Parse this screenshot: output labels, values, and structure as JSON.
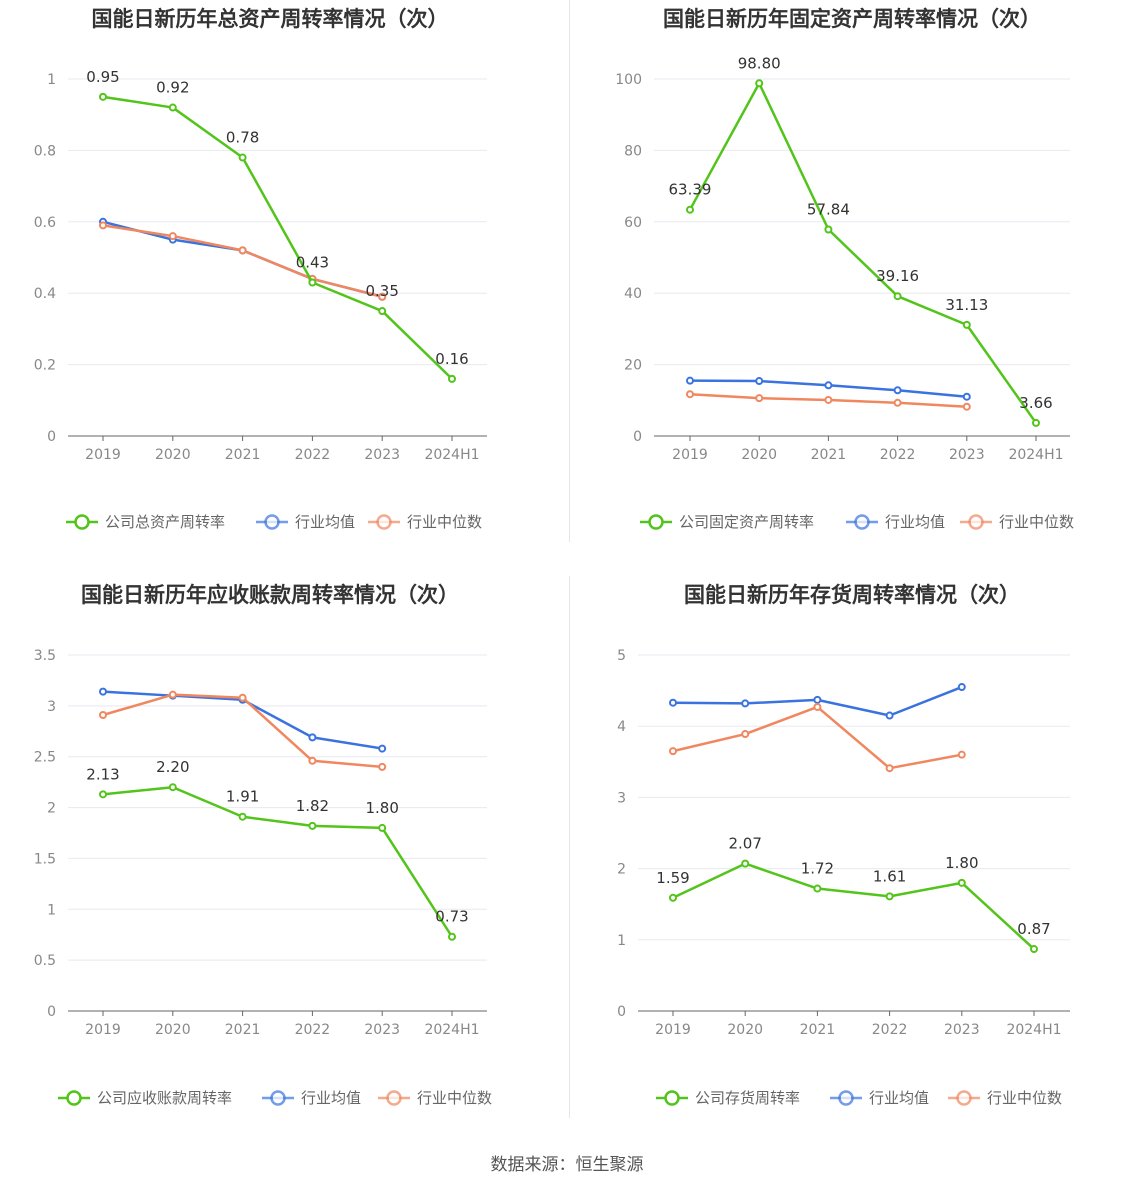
{
  "footer": "数据来源：恒生聚源",
  "colors": {
    "company": "#52c41a",
    "avg": "#3a73df",
    "median": "#f0875f",
    "grid": "#e8e8f0",
    "axis": "#888888"
  },
  "chart_data": [
    {
      "type": "line",
      "title": "国能日新历年总资产周转率情况（次）",
      "categories": [
        "2019",
        "2020",
        "2021",
        "2022",
        "2023",
        "2024H1"
      ],
      "yticks": [
        "0",
        "0.2",
        "0.4",
        "0.6",
        "0.8",
        "1"
      ],
      "ylim": [
        0,
        1
      ],
      "series": [
        {
          "name": "公司总资产周转率",
          "key": "company",
          "values": [
            0.95,
            0.92,
            0.78,
            0.43,
            0.35,
            0.16
          ],
          "labels": [
            "0.95",
            "0.92",
            "0.78",
            "0.43",
            "0.35",
            "0.16"
          ]
        },
        {
          "name": "行业均值",
          "key": "avg",
          "values": [
            0.6,
            0.55,
            0.52,
            0.44,
            0.39,
            null
          ]
        },
        {
          "name": "行业中位数",
          "key": "median",
          "values": [
            0.59,
            0.56,
            0.52,
            0.44,
            0.39,
            null
          ]
        }
      ]
    },
    {
      "type": "line",
      "title": "国能日新历年固定资产周转率情况（次）",
      "categories": [
        "2019",
        "2020",
        "2021",
        "2022",
        "2023",
        "2024H1"
      ],
      "yticks": [
        "0",
        "20",
        "40",
        "60",
        "80",
        "100"
      ],
      "ylim": [
        0,
        100
      ],
      "series": [
        {
          "name": "公司固定资产周转率",
          "key": "company",
          "values": [
            63.39,
            98.8,
            57.84,
            39.16,
            31.13,
            3.66
          ],
          "labels": [
            "63.39",
            "98.80",
            "57.84",
            "39.16",
            "31.13",
            "3.66"
          ]
        },
        {
          "name": "行业均值",
          "key": "avg",
          "values": [
            15.5,
            15.4,
            14.2,
            12.8,
            11.0,
            null
          ]
        },
        {
          "name": "行业中位数",
          "key": "median",
          "values": [
            11.7,
            10.6,
            10.1,
            9.3,
            8.2,
            null
          ]
        }
      ]
    },
    {
      "type": "line",
      "title": "国能日新历年应收账款周转率情况（次）",
      "categories": [
        "2019",
        "2020",
        "2021",
        "2022",
        "2023",
        "2024H1"
      ],
      "yticks": [
        "0",
        "0.5",
        "1",
        "1.5",
        "2",
        "2.5",
        "3",
        "3.5"
      ],
      "ylim": [
        0,
        3.5
      ],
      "series": [
        {
          "name": "公司应收账款周转率",
          "key": "company",
          "values": [
            2.13,
            2.2,
            1.91,
            1.82,
            1.8,
            0.73
          ],
          "labels": [
            "2.13",
            "2.20",
            "1.91",
            "1.82",
            "1.80",
            "0.73"
          ]
        },
        {
          "name": "行业均值",
          "key": "avg",
          "values": [
            3.14,
            3.1,
            3.06,
            2.69,
            2.58,
            null
          ]
        },
        {
          "name": "行业中位数",
          "key": "median",
          "values": [
            2.91,
            3.11,
            3.08,
            2.46,
            2.4,
            null
          ]
        }
      ]
    },
    {
      "type": "line",
      "title": "国能日新历年存货周转率情况（次）",
      "categories": [
        "2019",
        "2020",
        "2021",
        "2022",
        "2023",
        "2024H1"
      ],
      "yticks": [
        "0",
        "1",
        "2",
        "3",
        "4",
        "5"
      ],
      "ylim": [
        0,
        5
      ],
      "series": [
        {
          "name": "公司存货周转率",
          "key": "company",
          "values": [
            1.59,
            2.07,
            1.72,
            1.61,
            1.8,
            0.87
          ],
          "labels": [
            "1.59",
            "2.07",
            "1.72",
            "1.61",
            "1.80",
            "0.87"
          ]
        },
        {
          "name": "行业均值",
          "key": "avg",
          "values": [
            4.33,
            4.32,
            4.37,
            4.15,
            4.55,
            null
          ]
        },
        {
          "name": "行业中位数",
          "key": "median",
          "values": [
            3.65,
            3.89,
            4.27,
            3.41,
            3.6,
            null
          ]
        }
      ]
    }
  ]
}
